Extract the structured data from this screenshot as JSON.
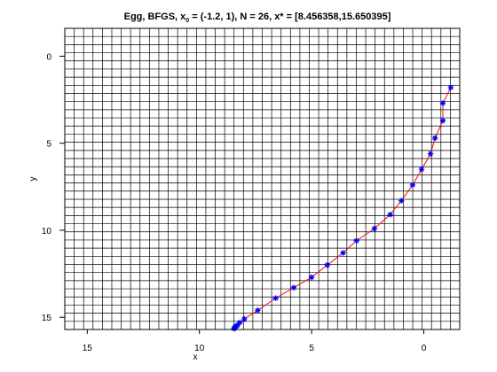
{
  "chart_data": {
    "type": "scatter",
    "title_parts": {
      "prefix": "Egg, BFGS, x",
      "subscript": "0",
      "suffix": " = (-1.2, 1), N = 26, x* = [8.456358,15.650395]"
    },
    "xlabel": "x",
    "ylabel": "y",
    "xlim": [
      16.0,
      -1.6
    ],
    "ylim": [
      -1.6,
      15.7
    ],
    "x_reversed": true,
    "y_reversed": true,
    "grid": true,
    "grid_divisions": {
      "x": 42,
      "y": 37
    },
    "x_ticks": [
      15,
      10,
      5,
      0
    ],
    "y_ticks": [
      0,
      5,
      10,
      15
    ],
    "colors": {
      "line": "#ff0000",
      "marker": "#0000ff",
      "grid": "#000000"
    },
    "marker": "asterisk",
    "series": [
      {
        "x": [
          -1.2,
          -0.85,
          -0.85,
          -0.5,
          -0.3,
          0.1,
          0.5,
          1.0,
          1.5,
          2.2,
          3.0,
          3.6,
          4.3,
          5.0,
          5.8,
          6.6,
          7.4,
          8.0,
          8.2,
          8.3,
          8.35,
          8.4,
          8.42,
          8.44,
          8.45,
          8.456
        ],
        "y": [
          1.8,
          2.7,
          3.7,
          4.7,
          5.6,
          6.5,
          7.4,
          8.3,
          9.1,
          9.9,
          10.6,
          11.3,
          12.0,
          12.7,
          13.3,
          13.9,
          14.6,
          15.1,
          15.3,
          15.45,
          15.5,
          15.55,
          15.6,
          15.62,
          15.64,
          15.65
        ]
      }
    ]
  }
}
